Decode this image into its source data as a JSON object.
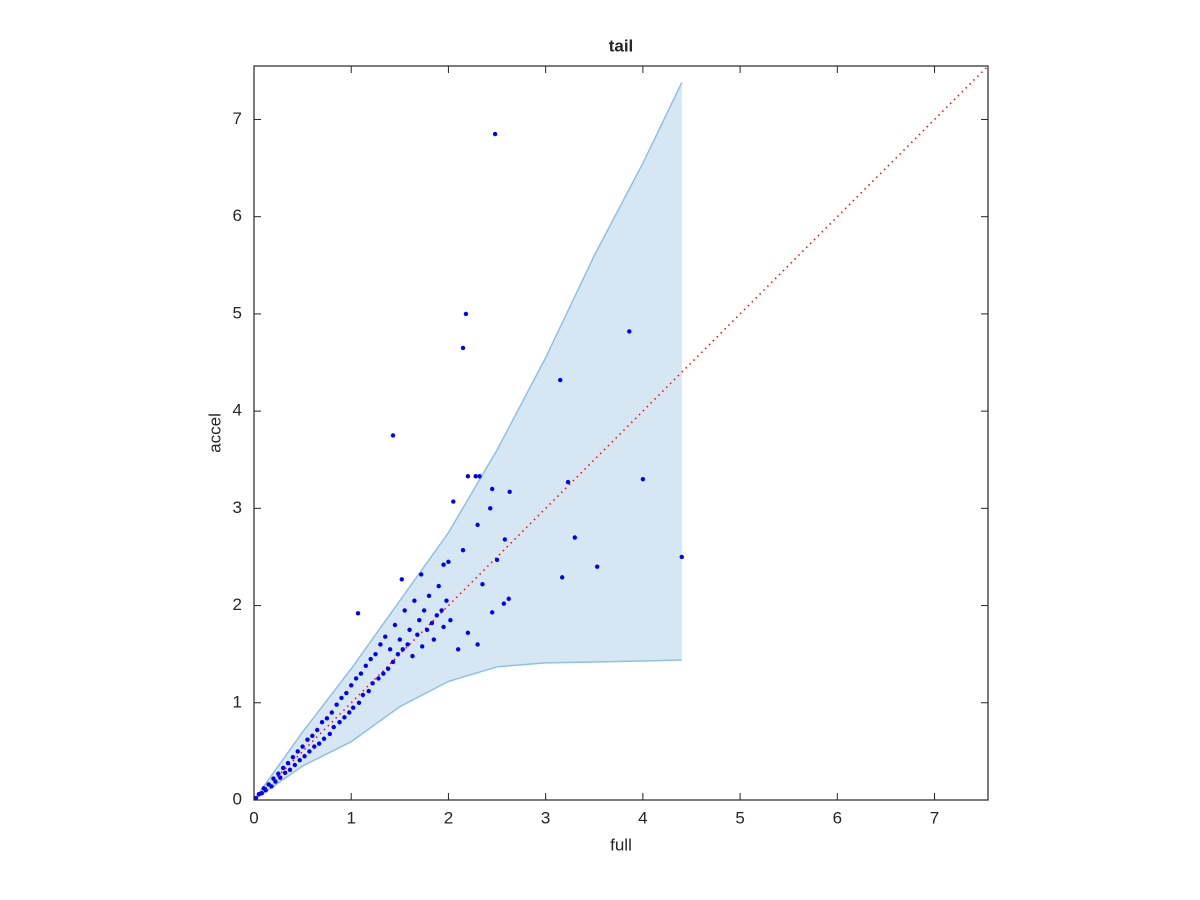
{
  "chart_data": {
    "type": "scatter",
    "title": "tail",
    "x_label": "full",
    "y_label": "accel",
    "xlim": [
      0,
      7.55
    ],
    "ylim": [
      0,
      7.55
    ],
    "xticks": [
      0,
      1,
      2,
      3,
      4,
      5,
      6,
      7
    ],
    "yticks": [
      0,
      1,
      2,
      3,
      4,
      5,
      6,
      7
    ],
    "grid": false,
    "band": {
      "color": "#d6e6f2",
      "edge_color": "#8fc1e3",
      "x": [
        0,
        0.5,
        1,
        1.5,
        2,
        2.5,
        3,
        3.5,
        4,
        4.4
      ],
      "upper": [
        0,
        0.7,
        1.35,
        2.05,
        2.75,
        3.6,
        4.55,
        5.6,
        6.55,
        7.38
      ],
      "lower": [
        0,
        0.35,
        0.6,
        0.96,
        1.22,
        1.37,
        1.41,
        1.42,
        1.43,
        1.44
      ]
    },
    "reference_line": {
      "color": "#ff0000",
      "x": [
        0,
        7.55
      ],
      "values": [
        0,
        7.55
      ]
    },
    "series": [
      {
        "color": "#0000ff",
        "x": [
          2.48,
          2.18,
          2.15,
          3.86,
          3.15,
          1.43,
          4.0,
          3.23,
          2.2,
          2.28,
          2.32,
          2.45,
          2.63,
          2.05,
          2.43,
          2.3,
          3.3,
          2.58,
          2.15,
          2.5,
          4.4,
          3.53,
          3.17,
          2.35,
          2.0,
          1.95,
          1.52,
          1.72,
          2.62,
          2.57,
          1.07,
          2.2,
          2.45,
          2.3,
          2.1,
          0.02,
          0.05,
          0.08,
          0.1,
          0.12,
          0.15,
          0.18,
          0.2,
          0.22,
          0.25,
          0.27,
          0.3,
          0.32,
          0.35,
          0.37,
          0.4,
          0.42,
          0.45,
          0.47,
          0.5,
          0.52,
          0.55,
          0.57,
          0.6,
          0.62,
          0.65,
          0.67,
          0.7,
          0.72,
          0.75,
          0.78,
          0.8,
          0.82,
          0.85,
          0.88,
          0.9,
          0.93,
          0.95,
          0.98,
          1.0,
          1.02,
          1.05,
          1.08,
          1.1,
          1.12,
          1.15,
          1.18,
          1.2,
          1.22,
          1.25,
          1.28,
          1.3,
          1.33,
          1.35,
          1.38,
          1.4,
          1.43,
          1.45,
          1.48,
          1.5,
          1.53,
          1.55,
          1.58,
          1.6,
          1.63,
          1.65,
          1.68,
          1.7,
          1.73,
          1.75,
          1.78,
          1.8,
          1.83,
          1.85,
          1.88,
          1.9,
          1.93,
          1.95,
          1.98,
          2.02
        ],
        "values": [
          6.85,
          5.0,
          4.65,
          4.82,
          4.32,
          3.75,
          3.3,
          3.27,
          3.33,
          3.33,
          3.33,
          3.2,
          3.17,
          3.07,
          3.0,
          2.83,
          2.7,
          2.68,
          2.57,
          2.47,
          2.5,
          2.4,
          2.29,
          2.22,
          2.45,
          2.42,
          2.27,
          2.32,
          2.07,
          2.02,
          1.92,
          1.72,
          1.93,
          1.6,
          1.55,
          0.02,
          0.06,
          0.07,
          0.12,
          0.1,
          0.16,
          0.14,
          0.22,
          0.19,
          0.27,
          0.23,
          0.33,
          0.28,
          0.38,
          0.31,
          0.44,
          0.36,
          0.5,
          0.41,
          0.55,
          0.45,
          0.62,
          0.5,
          0.66,
          0.55,
          0.72,
          0.58,
          0.8,
          0.63,
          0.84,
          0.68,
          0.9,
          0.75,
          0.98,
          0.8,
          1.05,
          0.85,
          1.1,
          0.9,
          1.18,
          0.95,
          1.25,
          1.0,
          1.3,
          1.08,
          1.38,
          1.12,
          1.45,
          1.2,
          1.5,
          1.25,
          1.6,
          1.3,
          1.68,
          1.35,
          1.55,
          1.42,
          1.8,
          1.5,
          1.65,
          1.55,
          1.95,
          1.6,
          1.75,
          1.48,
          2.05,
          1.7,
          1.85,
          1.58,
          1.95,
          1.75,
          2.1,
          1.82,
          1.65,
          1.9,
          2.2,
          1.95,
          1.78,
          2.05,
          1.85
        ]
      }
    ]
  }
}
